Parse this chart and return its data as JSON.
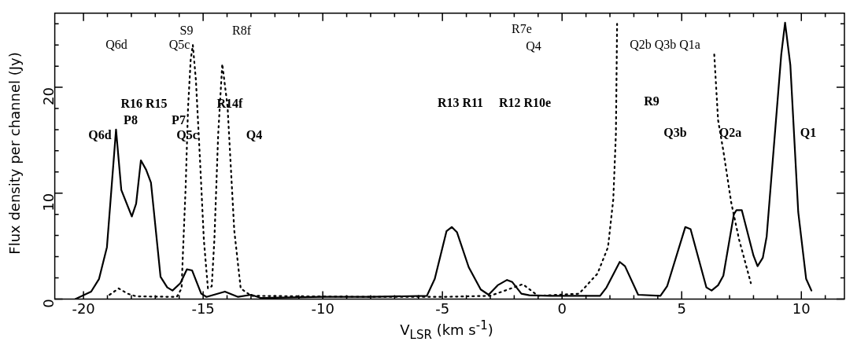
{
  "chart_data": {
    "type": "line",
    "xlabel": "V$_{LSR}$ (km s$^{-1}$)",
    "ylabel": "Flux density per channel (Jy)",
    "xlim": [
      -21.2,
      11.8
    ],
    "ylim": [
      0,
      27
    ],
    "xticks": [
      -20,
      {
        "value": -19,
        "label": null
      },
      {
        "value": -18,
        "label": null
      },
      {
        "value": -17,
        "label": null
      },
      {
        "value": -16,
        "label": null
      },
      -15,
      {
        "value": -14,
        "label": null
      },
      {
        "value": -13,
        "label": null
      },
      {
        "value": -12,
        "label": null
      },
      {
        "value": -11,
        "label": null
      },
      -10,
      {
        "value": -9,
        "label": null
      },
      {
        "value": -8,
        "label": null
      },
      {
        "value": -7,
        "label": null
      },
      {
        "value": -6,
        "label": null
      },
      -5,
      {
        "value": -4,
        "label": null
      },
      {
        "value": -3,
        "label": null
      },
      {
        "value": -2,
        "label": null
      },
      {
        "value": -1,
        "label": null
      },
      0,
      {
        "value": 1,
        "label": null
      },
      {
        "value": 2,
        "label": null
      },
      {
        "value": 3,
        "label": null
      },
      {
        "value": 4,
        "label": null
      },
      5,
      {
        "value": 6,
        "label": null
      },
      {
        "value": 7,
        "label": null
      },
      {
        "value": 8,
        "label": null
      },
      {
        "value": 9,
        "label": null
      },
      10,
      {
        "value": 11,
        "label": null
      }
    ],
    "yticks": [
      0,
      {
        "value": 2,
        "label": null
      },
      {
        "value": 4,
        "label": null
      },
      {
        "value": 6,
        "label": null
      },
      {
        "value": 8,
        "label": null
      },
      10,
      {
        "value": 12,
        "label": null
      },
      {
        "value": 14,
        "label": null
      },
      {
        "value": 16,
        "label": null
      },
      {
        "value": 18,
        "label": null
      },
      20,
      {
        "value": 22,
        "label": null
      },
      {
        "value": 24,
        "label": null
      },
      {
        "value": 26,
        "label": null
      }
    ],
    "grid": false,
    "legend": false,
    "marker": "none",
    "series": [
      {
        "line_style": "solid",
        "color": "#000000",
        "x": [
          -20.34,
          -19.68,
          -19.35,
          -19.02,
          -18.64,
          -18.42,
          -17.98,
          -17.8,
          -17.6,
          -17.38,
          -17.18,
          -16.78,
          -16.5,
          -16.28,
          -15.95,
          -15.68,
          -15.46,
          -15.08,
          -14.86,
          -14.09,
          -13.54,
          -12.99,
          -12.6,
          -10,
          -8,
          -5.65,
          -5.32,
          -4.83,
          -4.61,
          -4.39,
          -3.9,
          -3.4,
          -3.07,
          -2.69,
          -2.3,
          -2.08,
          -1.7,
          -1.37,
          -0.49,
          1.59,
          1.86,
          2.41,
          2.63,
          3.18,
          4.11,
          4.39,
          5.15,
          5.37,
          6.03,
          6.25,
          6.52,
          6.74,
          7.18,
          7.29,
          7.51,
          8.0,
          8.17,
          8.39,
          8.55,
          9.16,
          9.32,
          9.54,
          9.87,
          10.2,
          10.42
        ],
        "values": [
          0,
          0.7,
          1.9,
          4.9,
          16,
          10.3,
          7.8,
          9.0,
          13.1,
          12.2,
          11.0,
          2.1,
          1.1,
          0.8,
          1.5,
          2.8,
          2.7,
          0.5,
          0.2,
          0.7,
          0.2,
          0.4,
          0.1,
          0.2,
          0.2,
          0.3,
          1.9,
          6.4,
          6.8,
          6.3,
          3.0,
          0.9,
          0.4,
          1.3,
          1.8,
          1.6,
          0.5,
          0.35,
          0.3,
          0.3,
          1.1,
          3.5,
          3.1,
          0.4,
          0.3,
          1.2,
          6.8,
          6.6,
          1.1,
          0.8,
          1.3,
          2.2,
          8.0,
          8.4,
          8.4,
          4.1,
          3.1,
          3.9,
          5.9,
          23.1,
          26.1,
          22.1,
          8.2,
          1.9,
          0.8
        ]
      },
      {
        "line_style": "dotted",
        "color": "#000000",
        "x": [
          -18.91,
          -18.53,
          -18.15,
          -17.8,
          -16.1,
          -15.9,
          -15.85,
          -15.73,
          -15.63,
          -15.52,
          -15.43,
          -15.3,
          -15.13,
          -14.97,
          -14.8,
          -14.64,
          -14.53,
          -14.37,
          -14.2,
          -13.98,
          -13.87,
          -13.7,
          -13.43,
          -12.99,
          -8,
          -5,
          -3,
          -1.64,
          -1,
          0.71,
          1.48,
          1.92,
          2.14,
          2.25,
          2.3,
          2.31,
          4.2,
          6.19,
          6.36,
          6.52,
          6.74,
          7.07,
          7.4,
          7.89
        ],
        "values": [
          0.4,
          1.0,
          0.5,
          0.25,
          0.2,
          1.0,
          4.0,
          10.6,
          18.1,
          22.6,
          24.0,
          20.6,
          13.1,
          5.6,
          1.0,
          1.2,
          5.6,
          15.6,
          22.2,
          18.2,
          13.6,
          6.5,
          1.0,
          0.3,
          0.2,
          0.2,
          0.3,
          1.4,
          0.3,
          0.5,
          2.4,
          4.9,
          9.4,
          15.6,
          26.0,
          null,
          null,
          null,
          23.1,
          16.9,
          14.0,
          9.1,
          5.6,
          1.5
        ]
      }
    ],
    "annotations": [
      "Q6d",
      "S9",
      "Q5c",
      "R8f",
      "R7e",
      "Q4",
      "Q2b Q3b Q1a",
      "R16 R15",
      "P8",
      "Q6d",
      "P7",
      "Q5c",
      "R14f",
      "Q4",
      "R13 R11",
      "R12 R10e",
      "R9",
      "Q3b",
      "Q2a",
      "Q1"
    ]
  }
}
